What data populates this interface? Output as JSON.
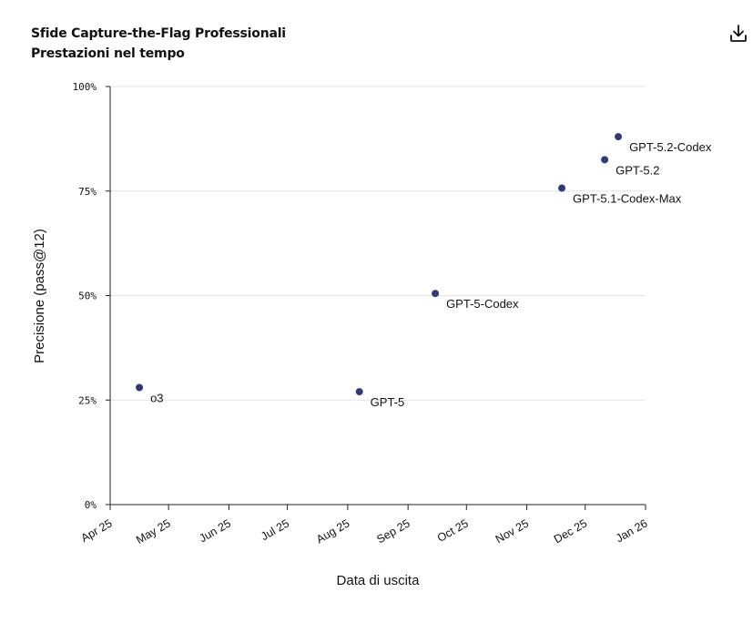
{
  "header": {
    "title": "Sfide Capture-the-Flag Professionali",
    "subtitle": "Prestazioni nel tempo"
  },
  "toolbar": {
    "download_icon": "download-icon"
  },
  "chart_data": {
    "type": "scatter",
    "title": "Sfide Capture-the-Flag Professionali",
    "subtitle": "Prestazioni nel tempo",
    "xlabel": "Data di uscita",
    "ylabel": "Precisione (pass@12)",
    "ylim": [
      0,
      100
    ],
    "yticks": [
      0,
      25,
      50,
      75,
      100
    ],
    "ytick_labels": [
      "0%",
      "25%",
      "50%",
      "75%",
      "100%"
    ],
    "xlim": [
      "2025-04-01",
      "2026-01-01"
    ],
    "xticks": [
      "2025-04-01",
      "2025-05-01",
      "2025-06-01",
      "2025-07-01",
      "2025-08-01",
      "2025-09-01",
      "2025-10-01",
      "2025-11-01",
      "2025-12-01",
      "2026-01-01"
    ],
    "xtick_labels": [
      "Apr 25",
      "May 25",
      "Jun 25",
      "Jul 25",
      "Aug 25",
      "Sep 25",
      "Oct 25",
      "Nov 25",
      "Dec 25",
      "Jan 26"
    ],
    "grid": "horizontal",
    "point_color": "#2e3a7c",
    "points": [
      {
        "label": "o3",
        "x": "2025-04-16",
        "y": 28
      },
      {
        "label": "GPT-5",
        "x": "2025-08-07",
        "y": 27
      },
      {
        "label": "GPT-5-Codex",
        "x": "2025-09-15",
        "y": 50.5
      },
      {
        "label": "GPT-5.1-Codex-Max",
        "x": "2025-11-19",
        "y": 75.7
      },
      {
        "label": "GPT-5.2",
        "x": "2025-12-11",
        "y": 82.5
      },
      {
        "label": "GPT-5.2-Codex",
        "x": "2025-12-18",
        "y": 88
      }
    ]
  }
}
